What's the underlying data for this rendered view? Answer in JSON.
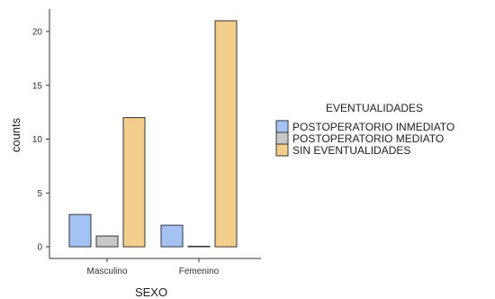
{
  "chart_data": {
    "type": "bar",
    "categories": [
      "Masculino",
      "Femenino"
    ],
    "series": [
      {
        "name": "POSTOPERATORIO INMEDIATO",
        "values": [
          3,
          2
        ],
        "color": "#a4c2f4"
      },
      {
        "name": "POSTOPERATORIO MEDIATO",
        "values": [
          1,
          0
        ],
        "color": "#c8c8c8"
      },
      {
        "name": "SIN EVENTUALIDADES",
        "values": [
          12,
          21
        ],
        "color": "#f2cd8c"
      }
    ],
    "xlabel": "SEXO",
    "ylabel": "counts",
    "ylim": [
      0,
      22
    ],
    "yticks": [
      0,
      5,
      10,
      15,
      20
    ],
    "legend_title": "EVENTUALIDADES",
    "legend_position": "right",
    "grid": false
  }
}
